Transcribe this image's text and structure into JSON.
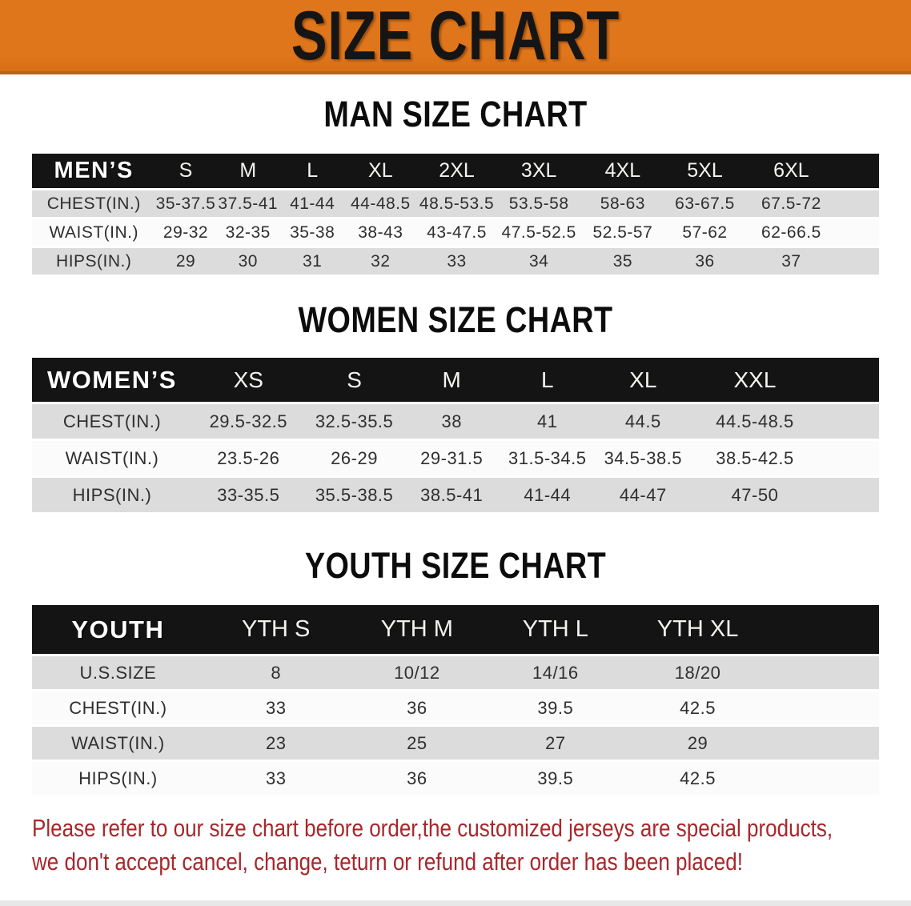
{
  "banner": {
    "title": "SIZE CHART"
  },
  "colors": {
    "banner-bg": "#E0761B",
    "banner-text": "#151515",
    "header-bar": "#141414",
    "header-text": "#FFFFFF",
    "row-gray": "#DCDCDC",
    "row-white": "#FBFBFB",
    "value-text": "#2F2F2F",
    "disclaimer-red": "#A8272B"
  },
  "sections": [
    {
      "id": "men",
      "heading": "MAN SIZE CHART",
      "table": {
        "header": [
          "MEN’S",
          "S",
          "M",
          "L",
          "XL",
          "2XL",
          "3XL",
          "4XL",
          "5XL",
          "6XL"
        ],
        "rows": [
          [
            "CHEST(IN.)",
            "35-37.5",
            "37.5-41",
            "41-44",
            "44-48.5",
            "48.5-53.5",
            "53.5-58",
            "58-63",
            "63-67.5",
            "67.5-72"
          ],
          [
            "WAIST(IN.)",
            "29-32",
            "32-35",
            "35-38",
            "38-43",
            "43-47.5",
            "47.5-52.5",
            "52.5-57",
            "57-62",
            "62-66.5"
          ],
          [
            "HIPS(IN.)",
            "29",
            "30",
            "31",
            "32",
            "33",
            "34",
            "35",
            "36",
            "37"
          ]
        ]
      }
    },
    {
      "id": "women",
      "heading": "WOMEN SIZE CHART",
      "table": {
        "header": [
          "WOMEN’S",
          "XS",
          "S",
          "M",
          "L",
          "XL",
          "XXL"
        ],
        "rows": [
          [
            "CHEST(IN.)",
            "29.5-32.5",
            "32.5-35.5",
            "38",
            "41",
            "44.5",
            "44.5-48.5"
          ],
          [
            "WAIST(IN.)",
            "23.5-26",
            "26-29",
            "29-31.5",
            "31.5-34.5",
            "34.5-38.5",
            "38.5-42.5"
          ],
          [
            "HIPS(IN.)",
            "33-35.5",
            "35.5-38.5",
            "38.5-41",
            "41-44",
            "44-47",
            "47-50"
          ]
        ]
      }
    },
    {
      "id": "youth",
      "heading": "YOUTH SIZE CHART",
      "table": {
        "header": [
          "YOUTH",
          "YTH S",
          "YTH M",
          "YTH L",
          "YTH XL"
        ],
        "rows": [
          [
            "U.S.SIZE",
            "8",
            "10/12",
            "14/16",
            "18/20"
          ],
          [
            "CHEST(IN.)",
            "33",
            "36",
            "39.5",
            "42.5"
          ],
          [
            "WAIST(IN.)",
            "23",
            "25",
            "27",
            "29"
          ],
          [
            "HIPS(IN.)",
            "33",
            "36",
            "39.5",
            "42.5"
          ]
        ]
      }
    }
  ],
  "disclaimer": {
    "line1": "Please refer to our size chart before order,the customized jerseys are special products,",
    "line2": "we don't accept cancel, change, teturn or refund after order has been placed!"
  }
}
